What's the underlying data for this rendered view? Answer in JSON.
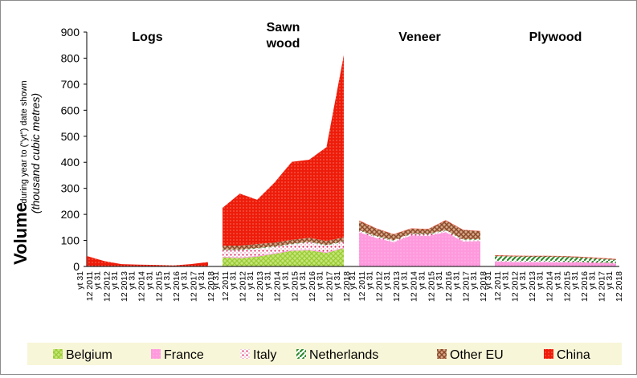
{
  "colors": {
    "Belgium": "#99cc33",
    "France": "#ff99dd",
    "Italy": "#e8a9bf",
    "Netherlands": "#2e8b2e",
    "Other EU": "#8b4a2b",
    "China": "#ee1c0a"
  },
  "chart_data": {
    "type": "area",
    "stacked": true,
    "ylabel_main": "Volume",
    "ylabel_small": "during year to (\"yt\") date shown",
    "ylabel_unit": "(thousand  cubic metres)",
    "ylim": [
      0,
      900
    ],
    "yticks": [
      0,
      100,
      200,
      300,
      400,
      500,
      600,
      700,
      800,
      900
    ],
    "grid": false,
    "legend_position": "bottom",
    "x_tick_labels": [
      "yt 31 12 2011",
      "yt 31 12 2012",
      "yt 31 12 2013",
      "yt 31 12 2014",
      "yt 31 12 2015",
      "yt 31 12 2016",
      "yt 31 12 2017",
      "yt 31 12 2018"
    ],
    "legend": [
      "Belgium",
      "France",
      "Italy",
      "Netherlands",
      "Other EU",
      "China"
    ],
    "panels": [
      {
        "title": "Logs",
        "series": [
          {
            "name": "Belgium",
            "values": [
              0,
              0,
              0,
              0,
              0,
              0,
              0,
              0
            ]
          },
          {
            "name": "France",
            "values": [
              0,
              0,
              0,
              0,
              0,
              0,
              0,
              0
            ]
          },
          {
            "name": "Italy",
            "values": [
              0,
              0,
              0,
              0,
              0,
              0,
              0,
              0
            ]
          },
          {
            "name": "Netherlands",
            "values": [
              0,
              0,
              0,
              0,
              0,
              0,
              0,
              0
            ]
          },
          {
            "name": "Other EU",
            "values": [
              2,
              1,
              1,
              1,
              0,
              0,
              1,
              1
            ]
          },
          {
            "name": "China",
            "values": [
              38,
              20,
              8,
              6,
              6,
              4,
              8,
              16
            ]
          }
        ]
      },
      {
        "title": "Sawn wood",
        "series": [
          {
            "name": "Belgium",
            "values": [
              35,
              32,
              38,
              48,
              60,
              62,
              52,
              70
            ]
          },
          {
            "name": "France",
            "values": [
              3,
              3,
              3,
              3,
              3,
              3,
              3,
              3
            ]
          },
          {
            "name": "Italy",
            "values": [
              25,
              28,
              28,
              24,
              22,
              28,
              26,
              22
            ]
          },
          {
            "name": "Netherlands",
            "values": [
              2,
              2,
              2,
              2,
              2,
              2,
              2,
              2
            ]
          },
          {
            "name": "Other EU",
            "values": [
              15,
              15,
              15,
              15,
              15,
              15,
              15,
              15
            ]
          },
          {
            "name": "China",
            "values": [
              145,
              200,
              170,
              230,
              300,
              300,
              360,
              700
            ]
          }
        ]
      },
      {
        "title": "Veneer",
        "series": [
          {
            "name": "Belgium",
            "values": [
              1,
              1,
              1,
              1,
              1,
              1,
              1,
              1
            ]
          },
          {
            "name": "France",
            "values": [
              130,
              108,
              92,
              118,
              116,
              131,
              95,
              96
            ]
          },
          {
            "name": "Italy",
            "values": [
              6,
              6,
              6,
              6,
              6,
              6,
              6,
              6
            ]
          },
          {
            "name": "Netherlands",
            "values": [
              2,
              2,
              2,
              2,
              2,
              2,
              2,
              2
            ]
          },
          {
            "name": "Other EU",
            "values": [
              36,
              28,
              22,
              18,
              18,
              36,
              36,
              30
            ]
          },
          {
            "name": "China",
            "values": [
              2,
              1,
              1,
              1,
              1,
              2,
              1,
              1
            ]
          }
        ]
      },
      {
        "title": "Plywood",
        "series": [
          {
            "name": "Belgium",
            "values": [
              1,
              1,
              1,
              1,
              1,
              1,
              1,
              1
            ]
          },
          {
            "name": "France",
            "values": [
              18,
              17,
              16,
              16,
              15,
              14,
              12,
              10
            ]
          },
          {
            "name": "Italy",
            "values": [
              2,
              2,
              2,
              2,
              2,
              2,
              2,
              2
            ]
          },
          {
            "name": "Netherlands",
            "values": [
              18,
              18,
              18,
              18,
              18,
              16,
              14,
              12
            ]
          },
          {
            "name": "Other EU",
            "values": [
              3,
              3,
              3,
              3,
              3,
              3,
              3,
              3
            ]
          },
          {
            "name": "China",
            "values": [
              1,
              1,
              1,
              1,
              1,
              1,
              1,
              1
            ]
          }
        ]
      }
    ]
  }
}
